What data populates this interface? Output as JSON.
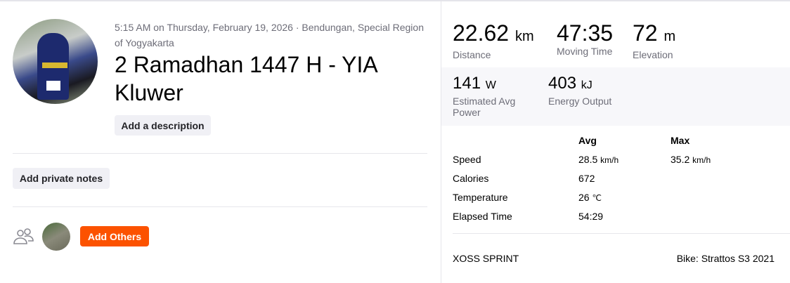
{
  "activity": {
    "meta": "5:15 AM on Thursday, February 19, 2026 · Bendungan, Special Region of Yogyakarta",
    "title": "2 Ramadhan 1447 H - YIA Kluwer",
    "add_description": "Add a description",
    "add_private_notes": "Add private notes",
    "add_others": "Add Others",
    "accent": "#fc5200",
    "group_icon": "people-icon"
  },
  "stats": {
    "primary": [
      {
        "value": "22.62",
        "unit": "km",
        "label": "Distance"
      },
      {
        "value": "47:35",
        "unit": "",
        "label": "Moving Time"
      },
      {
        "value": "72",
        "unit": "m",
        "label": "Elevation"
      }
    ],
    "secondary": [
      {
        "value": "141",
        "unit": "W",
        "label": "Estimated Avg Power"
      },
      {
        "value": "403",
        "unit": "kJ",
        "label": "Energy Output"
      }
    ],
    "table": {
      "headers": [
        "Avg",
        "Max"
      ],
      "rows": [
        {
          "label": "Speed",
          "avg": "28.5",
          "avg_unit": "km/h",
          "max": "35.2",
          "max_unit": "km/h"
        },
        {
          "label": "Calories",
          "avg": "672"
        },
        {
          "label": "Temperature",
          "avg": "26",
          "avg_unit": "℃"
        },
        {
          "label": "Elapsed Time",
          "avg": "54:29"
        }
      ]
    },
    "device": "XOSS SPRINT",
    "bike": "Bike: Strattos S3 2021"
  }
}
